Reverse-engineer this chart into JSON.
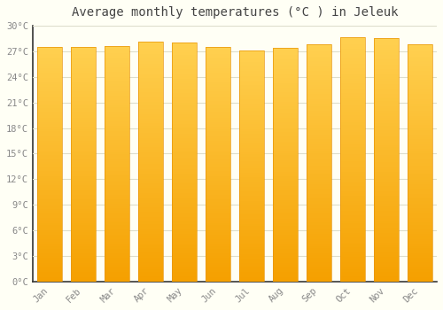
{
  "title": "Average monthly temperatures (°C ) in Jeleuk",
  "months": [
    "Jan",
    "Feb",
    "Mar",
    "Apr",
    "May",
    "Jun",
    "Jul",
    "Aug",
    "Sep",
    "Oct",
    "Nov",
    "Dec"
  ],
  "temperatures": [
    27.5,
    27.5,
    27.6,
    28.1,
    28.0,
    27.5,
    27.1,
    27.4,
    27.8,
    28.7,
    28.6,
    27.8
  ],
  "ylim": [
    0,
    30
  ],
  "yticks": [
    0,
    3,
    6,
    9,
    12,
    15,
    18,
    21,
    24,
    27,
    30
  ],
  "bar_color_top": "#FFD050",
  "bar_color_bottom": "#F5A000",
  "bar_edge_color": "#E8960A",
  "background_color": "#FFFFF5",
  "grid_color": "#DDDDCC",
  "title_fontsize": 10,
  "tick_fontsize": 7.5,
  "title_color": "#444444",
  "tick_color": "#888888",
  "bar_width": 0.75
}
